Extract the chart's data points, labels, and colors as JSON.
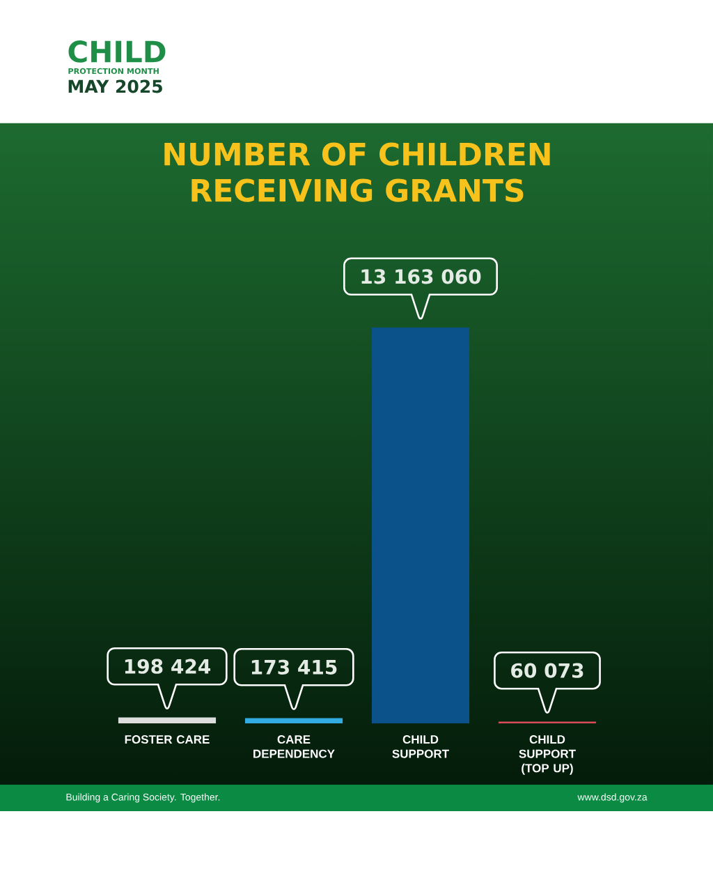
{
  "chart_data": {
    "type": "bar",
    "title": "NUMBER OF CHILDREN RECEIVING GRANTS",
    "categories": [
      "FOSTER CARE",
      "CARE DEPENDENCY",
      "CHILD SUPPORT",
      "CHILD SUPPORT (TOP UP)"
    ],
    "values": [
      198424,
      173415,
      13163060,
      60073
    ],
    "colors": [
      "#dbdedd",
      "#33ade1",
      "#0a5289",
      "#dc4b58"
    ],
    "value_labels": [
      "198 424",
      "173 415",
      "13 163 060",
      "60 073"
    ],
    "tick_labels": "x",
    "annotations": [
      "CHILD",
      "PROTECTION MONTH",
      "MAY 2025",
      "Building a Caring Society. Together.",
      "www.dsd.gov.za"
    ]
  }
}
